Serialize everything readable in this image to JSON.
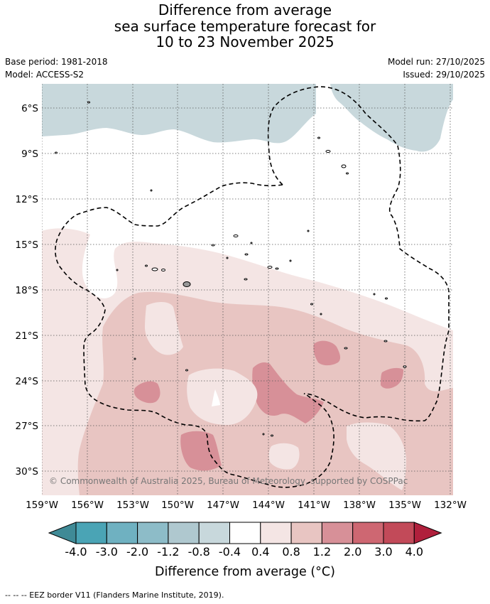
{
  "title": {
    "line1": "Difference from average",
    "line2": "sea surface temperature forecast for",
    "line3": "10 to 23 November 2025"
  },
  "meta": {
    "base_period": "Base period: 1981-2018",
    "model": "Model: ACCESS-S2",
    "model_run": "Model run: 27/10/2025",
    "issued": "Issued: 29/10/2025"
  },
  "axes": {
    "lat_labels": [
      "6°S",
      "9°S",
      "12°S",
      "15°S",
      "18°S",
      "21°S",
      "24°S",
      "27°S",
      "30°S"
    ],
    "lon_labels": [
      "159°W",
      "156°W",
      "153°W",
      "150°W",
      "147°W",
      "144°W",
      "141°W",
      "138°W",
      "135°W",
      "132°W"
    ]
  },
  "colorbar": {
    "tick_labels": [
      "-4.0",
      "-3.0",
      "-2.0",
      "-1.2",
      "-0.8",
      "-0.4",
      "0.4",
      "0.8",
      "1.2",
      "2.0",
      "3.0",
      "4.0"
    ],
    "colors": [
      "#3f8a96",
      "#4aa4b5",
      "#6fb1c1",
      "#8dbcc8",
      "#afc8cf",
      "#c8d8dc",
      "#ffffff",
      "#f4e5e4",
      "#e8c5c2",
      "#d79098",
      "#ce6772",
      "#c24a59",
      "#b0203c"
    ],
    "title": "Difference from average (°C)"
  },
  "copyright": "© Commonwealth of Australia 2025, Bureau of Meteorology, supported by COSPPac",
  "legend": "--  --  -- EEZ border V11 (Flanders Marine Institute, 2019)."
}
